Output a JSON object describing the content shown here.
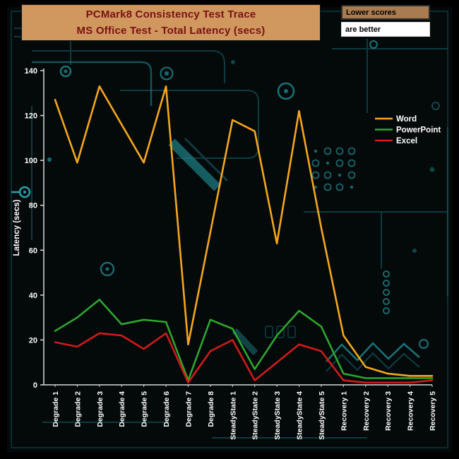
{
  "header": {
    "title_line1": "PCMark8 Consistency Test Trace",
    "title_line2": "MS Office Test -  Total Latency (secs)",
    "note_line1": "Lower scores",
    "note_line2": "are better"
  },
  "colors": {
    "title_box_bg": "#D0985F",
    "title_text": "#7A1113",
    "note_top_bg": "#A87C50",
    "note_bottom_bg": "#FFFFFF",
    "axis": "#D9D9D9",
    "chart_text": "#FFFFFF",
    "circuit_teal": "#1F858C"
  },
  "chart_data": {
    "type": "line",
    "title": "PCMark8 Consistency Test Trace",
    "subtitle": "MS Office Test - Total Latency (secs)",
    "xlabel": "",
    "ylabel": "Latency (secs)",
    "ylim": [
      0,
      140
    ],
    "yticks": [
      0,
      20,
      40,
      60,
      80,
      100,
      120,
      140
    ],
    "grid": false,
    "legend_position": "inside-top-right",
    "categories": [
      "Degrade 1",
      "Degrade 2",
      "Degrade 3",
      "Degrade 4",
      "Degrade 5",
      "Degrade 6",
      "Degrade 7",
      "Degrade 8",
      "SteadyState 1",
      "SteadyState 2",
      "SteadyState 3",
      "SteadyState 4",
      "SteadyState 5",
      "Recovery 1",
      "Recovery 2",
      "Recovery 3",
      "Recovery 4",
      "Recovery 5"
    ],
    "series": [
      {
        "name": "Word",
        "color": "#F4A71D",
        "values": [
          127,
          99,
          133,
          116,
          99,
          133,
          18,
          68,
          118,
          113,
          63,
          122,
          70,
          22,
          8,
          5,
          4,
          4
        ]
      },
      {
        "name": "PowerPoint",
        "color": "#2FA52F",
        "values": [
          24,
          30,
          38,
          27,
          29,
          28,
          2,
          29,
          25,
          7,
          22,
          33,
          26,
          5,
          3,
          3,
          3,
          3
        ]
      },
      {
        "name": "Excel",
        "color": "#D11A1A",
        "values": [
          19,
          17,
          23,
          22,
          16,
          23,
          1,
          15,
          20,
          2,
          10,
          18,
          15,
          2,
          1,
          1,
          1,
          2
        ]
      }
    ]
  }
}
